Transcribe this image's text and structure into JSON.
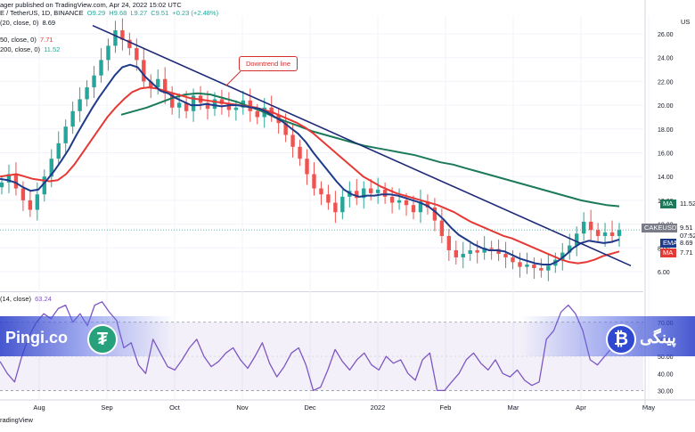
{
  "header": {
    "publisher": "ager published on TradingView.com, Apr 24, 2022 15:02 UTC",
    "symbol_line": "E / TetherUS, 1D, BINANCE",
    "ohlc": {
      "o": "O9.29",
      "h": "H9.68",
      "l": "L9.27",
      "c": "C9.51",
      "chg": "+0.23 (+2.48%)"
    },
    "ema_label": "(20, close, 0)",
    "ema_value": "8.69",
    "ma50_label": "50, close, 0)",
    "ma50_value": "7.71",
    "ma200_label": "200, close, 0)",
    "ma200_value": "11.52",
    "rsi_label": "(14, close)",
    "rsi_value": "63.24",
    "currency": "US"
  },
  "annotation": {
    "text": "Downtrend line"
  },
  "tags": {
    "symbol": "CAKEUSDT",
    "price": "9.51",
    "countdown": "07:52",
    "ema_label": "EMA",
    "ema_value": "8.69",
    "ma_label": "MA",
    "ma_value": "7.71",
    "ma200_label": "MA",
    "ma200_value": "11.52"
  },
  "brand": {
    "left": "Pingi.co",
    "right": "پینگی"
  },
  "icons": {
    "tether": "tether-coin-icon",
    "bitcoin": "bitcoin-coin-icon"
  },
  "footer": {
    "text": "radingView"
  },
  "colors": {
    "up": "#26a69a",
    "down": "#ef5350",
    "ema": "#1e3a8a",
    "ma50": "#e53935",
    "ma200": "#1b7a5a",
    "rsi": "#7e57c2",
    "trend": "#1e2a78"
  },
  "chart_data": [
    {
      "type": "candlestick",
      "title": "",
      "x_ticks": [
        "Aug",
        "Sep",
        "Oct",
        "Nov",
        "Dec",
        "2022",
        "Feb",
        "Mar",
        "Apr",
        "May"
      ],
      "y_ticks": [
        6.0,
        8.0,
        10.0,
        12.0,
        14.0,
        16.0,
        18.0,
        20.0,
        22.0,
        24.0,
        26.0
      ],
      "ylim": [
        4.5,
        27.5
      ],
      "axis": "right",
      "grid": true,
      "approx_close": [
        13.5,
        14.2,
        13.0,
        12.0,
        11.2,
        12.5,
        14.0,
        15.5,
        16.8,
        18.2,
        19.5,
        20.5,
        21.5,
        22.5,
        23.8,
        25.0,
        26.3,
        25.5,
        24.8,
        23.8,
        22.0,
        21.5,
        22.2,
        21.0,
        19.8,
        20.2,
        19.5,
        20.8,
        20.2,
        19.7,
        20.5,
        20.1,
        19.6,
        19.8,
        20.4,
        19.5,
        19.0,
        19.8,
        19.2,
        18.5,
        17.5,
        16.5,
        15.5,
        14.2,
        13.0,
        12.5,
        11.8,
        11.0,
        12.3,
        12.8,
        12.2,
        13.0,
        12.6,
        12.9,
        12.3,
        11.8,
        12.0,
        11.6,
        11.0,
        11.9,
        11.4,
        10.3,
        9.0,
        7.8,
        7.2,
        7.5,
        7.8,
        7.6,
        8.0,
        7.9,
        7.5,
        7.2,
        6.8,
        6.4,
        6.6,
        6.3,
        6.1,
        6.5,
        7.0,
        7.6,
        8.2,
        9.2,
        10.2,
        9.5,
        9.0,
        9.3,
        9.0,
        9.5
      ],
      "series": [
        {
          "name": "EMA",
          "values": [
            13.8,
            13.7,
            13.5,
            13.1,
            12.8,
            12.9,
            13.6,
            14.4,
            15.3,
            16.3,
            17.5,
            18.6,
            19.7,
            20.7,
            21.6,
            22.5,
            23.2,
            23.4,
            23.2,
            22.4,
            21.8,
            21.2,
            21.0,
            20.6,
            20.3,
            20.0,
            20.0,
            20.1,
            20.0,
            19.9,
            20.0,
            20.0,
            19.9,
            19.8,
            19.7,
            19.4,
            19.0,
            18.6,
            18.1,
            17.6,
            16.9,
            16.0,
            15.2,
            14.4,
            13.6,
            12.9,
            12.5,
            12.3,
            12.4,
            12.4,
            12.5,
            12.5,
            12.4,
            12.2,
            12.0,
            11.8,
            11.5,
            11.0,
            10.4,
            9.7,
            9.1,
            8.7,
            8.3,
            8.0,
            7.8,
            7.8,
            7.7,
            7.4,
            7.1,
            6.9,
            6.7,
            6.6,
            6.6,
            6.9,
            7.4,
            8.0,
            8.4,
            8.6,
            8.5,
            8.4,
            8.5,
            8.7
          ]
        },
        {
          "name": "MA",
          "values": [
            14.0,
            14.1,
            14.2,
            14.0,
            13.8,
            13.7,
            13.6,
            13.7,
            14.2,
            15.0,
            16.0,
            17.0,
            18.0,
            19.0,
            19.8,
            20.5,
            21.1,
            21.4,
            21.5,
            21.4,
            21.2,
            21.0,
            20.8,
            20.6,
            20.5,
            20.4,
            20.3,
            20.2,
            20.1,
            20.0,
            19.9,
            19.8,
            19.6,
            19.4,
            19.1,
            18.8,
            18.5,
            18.1,
            17.6,
            17.0,
            16.4,
            15.8,
            15.2,
            14.6,
            14.0,
            13.6,
            13.2,
            12.9,
            12.6,
            12.4,
            12.2,
            12.0,
            11.8,
            11.6,
            11.3,
            11.0,
            10.6,
            10.2,
            9.9,
            9.6,
            9.3,
            9.0,
            8.8,
            8.5,
            8.2,
            7.9,
            7.6,
            7.3,
            7.0,
            6.8,
            6.7,
            6.8,
            7.0,
            7.3,
            7.5,
            7.7
          ]
        },
        {
          "name": "MA",
          "values": [
            19.2,
            19.5,
            19.8,
            20.2,
            20.6,
            20.9,
            21.0,
            20.9,
            20.6,
            20.3,
            19.9,
            19.5,
            19.0,
            18.6,
            18.2,
            17.8,
            17.5,
            17.2,
            16.9,
            16.6,
            16.4,
            16.2,
            16.0,
            15.8,
            15.5,
            15.2,
            15.0,
            14.7,
            14.4,
            14.1,
            13.8,
            13.5,
            13.2,
            12.9,
            12.6,
            12.3,
            12.0,
            11.8,
            11.6,
            11.5
          ]
        }
      ],
      "trendline": {
        "from": [
          "Sep",
          26.7
        ],
        "to": [
          "Apr",
          6.5
        ]
      }
    },
    {
      "type": "line",
      "title": "",
      "y_ticks": [
        30.0,
        40.0,
        50.0,
        60.0,
        70.0
      ],
      "ylim": [
        25,
        85
      ],
      "bands": [
        30,
        70
      ],
      "series": [
        {
          "name": "RSI",
          "values": [
            47,
            40,
            35,
            50,
            62,
            70,
            75,
            72,
            78,
            80,
            70,
            75,
            68,
            80,
            82,
            76,
            71,
            55,
            58,
            45,
            40,
            60,
            52,
            44,
            42,
            48,
            55,
            60,
            50,
            44,
            47,
            52,
            55,
            48,
            43,
            50,
            58,
            46,
            38,
            44,
            52,
            55,
            45,
            30,
            32,
            42,
            54,
            47,
            42,
            48,
            52,
            45,
            42,
            50,
            46,
            48,
            40,
            36,
            48,
            52,
            30,
            30,
            35,
            40,
            48,
            52,
            46,
            42,
            48,
            40,
            38,
            42,
            36,
            33,
            35,
            60,
            65,
            76,
            80,
            75,
            65,
            48,
            45,
            50,
            55,
            63
          ]
        }
      ]
    }
  ]
}
